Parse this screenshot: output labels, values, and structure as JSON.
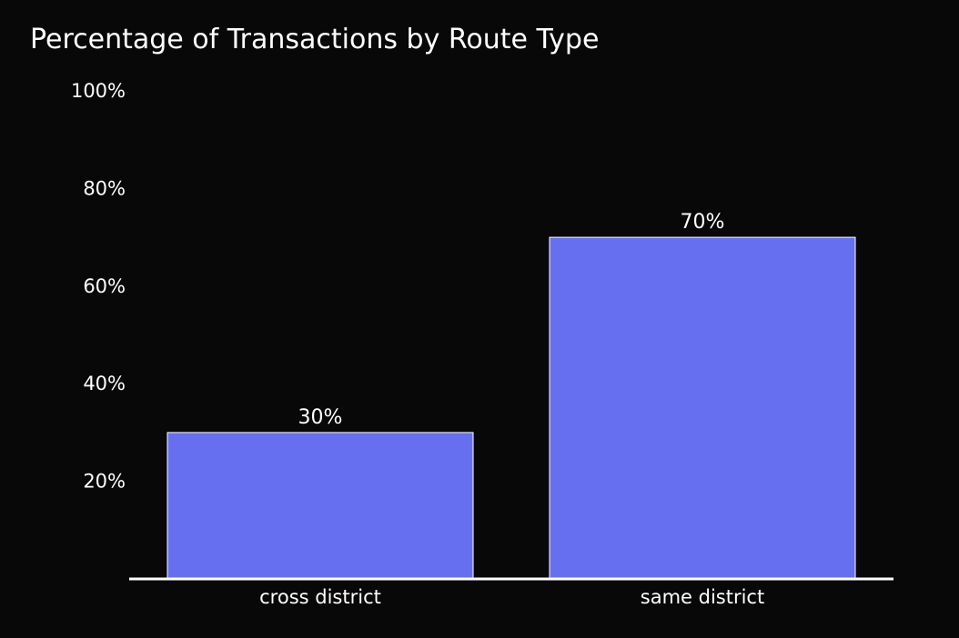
{
  "chart_data": {
    "type": "bar",
    "title": "Percentage of Transactions by Route Type",
    "xlabel": "",
    "ylabel": "",
    "categories": [
      "cross district",
      "same district"
    ],
    "values": [
      30,
      70
    ],
    "data_labels": [
      "30%",
      "70%"
    ],
    "yticks": [
      20,
      40,
      60,
      80,
      100
    ],
    "ytick_labels": [
      "20%",
      "40%",
      "60%",
      "80%",
      "100%"
    ],
    "ylim": [
      0,
      100
    ],
    "grid": false,
    "legend": "none",
    "colors": {
      "background": "#080808",
      "bar_fill": "#676ff1",
      "bar_edge": "#ffffff",
      "axis_line": "#ffffff",
      "text": "#ffffff"
    }
  }
}
